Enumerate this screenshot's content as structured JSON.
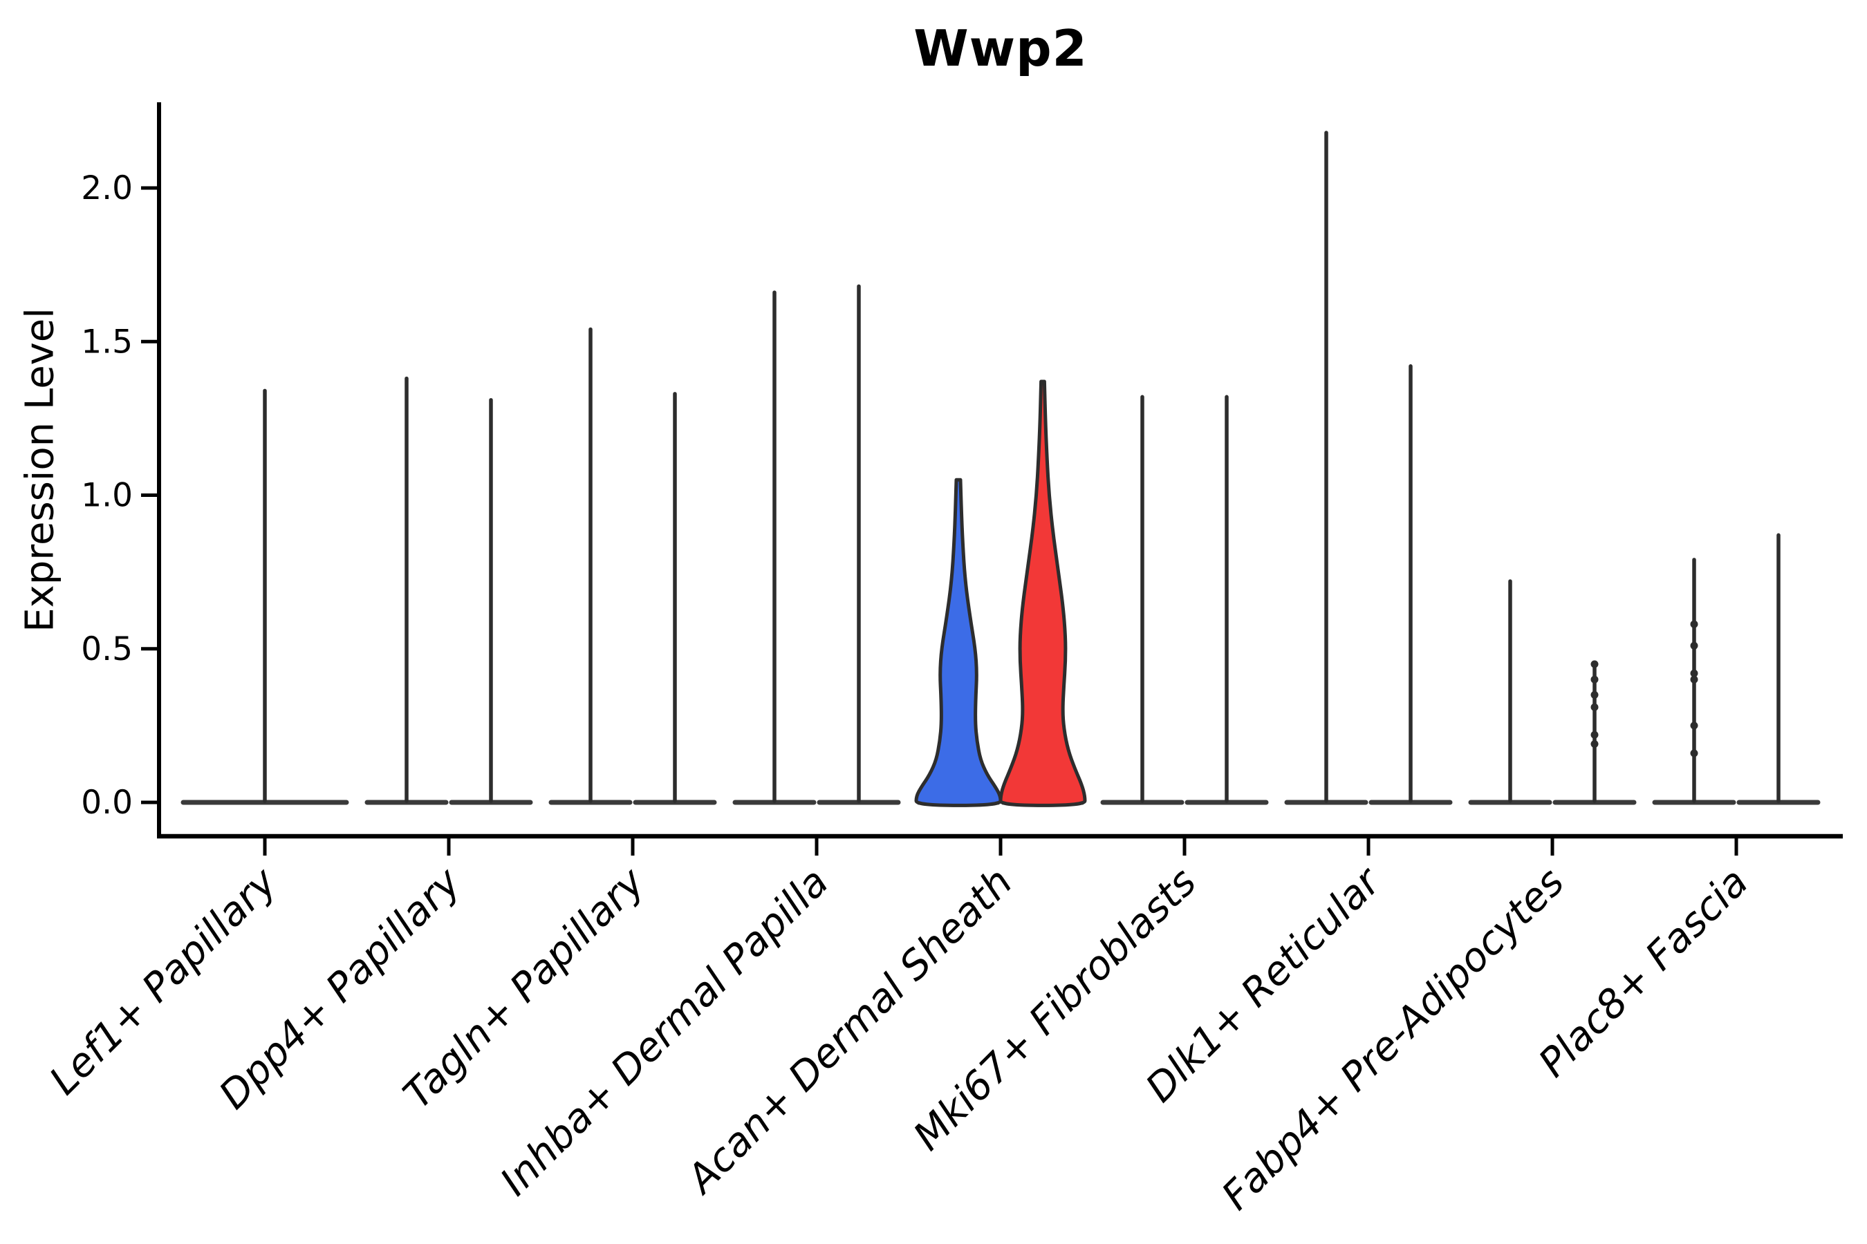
{
  "chart_data": {
    "type": "violin",
    "title": "Wwp2",
    "ylabel": "Expression Level",
    "xlabel": "",
    "yticks": [
      "0.0",
      "0.5",
      "1.0",
      "1.5",
      "2.0"
    ],
    "ylim": [
      -0.11,
      2.28
    ],
    "grid": false,
    "legend": "none",
    "colors": {
      "highlight_blue": "#3C6CE7",
      "highlight_red": "#F23837",
      "violin_outline": "#2D2D2D",
      "baseline": "#3A3A3A",
      "axis": "#000000"
    },
    "categories": [
      "Lef1+ Papillary",
      "Dpp4+ Papillary",
      "Tagln+ Papillary",
      "Inhba+ Dermal Papilla",
      "Acan+ Dermal Sheath",
      "Mki67+ Fibroblasts",
      "Dlk1+ Reticular",
      "Fabp4+ Pre-Adipocytes",
      "Plac8+ Fascia"
    ],
    "violins": [
      {
        "category": "Lef1+ Papillary",
        "items": [
          {
            "max": 1.34,
            "fill": "none",
            "span": "full"
          }
        ]
      },
      {
        "category": "Dpp4+ Papillary",
        "items": [
          {
            "max": 1.38,
            "fill": "none"
          },
          {
            "max": 1.31,
            "fill": "none"
          }
        ]
      },
      {
        "category": "Tagln+ Papillary",
        "items": [
          {
            "max": 1.54,
            "fill": "none"
          },
          {
            "max": 1.33,
            "fill": "none"
          }
        ]
      },
      {
        "category": "Inhba+ Dermal Papilla",
        "items": [
          {
            "max": 1.66,
            "fill": "none"
          },
          {
            "max": 1.68,
            "fill": "none"
          }
        ]
      },
      {
        "category": "Acan+ Dermal Sheath",
        "items": [
          {
            "max": 1.06,
            "fill": "#3C6CE7",
            "shape": "body",
            "profile": [
              [
                1.05,
                0.05
              ],
              [
                0.95,
                0.07
              ],
              [
                0.85,
                0.1
              ],
              [
                0.72,
                0.16
              ],
              [
                0.6,
                0.28
              ],
              [
                0.5,
                0.4
              ],
              [
                0.42,
                0.44
              ],
              [
                0.34,
                0.41
              ],
              [
                0.26,
                0.4
              ],
              [
                0.2,
                0.44
              ],
              [
                0.14,
                0.52
              ],
              [
                0.09,
                0.68
              ],
              [
                0.05,
                0.88
              ],
              [
                0.02,
                1.0
              ],
              [
                -0.01,
                1.0
              ]
            ]
          },
          {
            "max": 1.37,
            "fill": "#F23837",
            "shape": "body",
            "profile": [
              [
                1.37,
                0.04
              ],
              [
                1.25,
                0.06
              ],
              [
                1.12,
                0.1
              ],
              [
                1.0,
                0.15
              ],
              [
                0.88,
                0.24
              ],
              [
                0.76,
                0.36
              ],
              [
                0.64,
                0.48
              ],
              [
                0.54,
                0.54
              ],
              [
                0.46,
                0.54
              ],
              [
                0.38,
                0.5
              ],
              [
                0.3,
                0.47
              ],
              [
                0.24,
                0.5
              ],
              [
                0.17,
                0.6
              ],
              [
                0.11,
                0.76
              ],
              [
                0.06,
                0.92
              ],
              [
                0.02,
                1.0
              ],
              [
                -0.01,
                1.0
              ]
            ]
          }
        ]
      },
      {
        "category": "Mki67+ Fibroblasts",
        "items": [
          {
            "max": 1.32,
            "fill": "none"
          },
          {
            "max": 1.32,
            "fill": "none"
          }
        ]
      },
      {
        "category": "Dlk1+ Reticular",
        "items": [
          {
            "max": 2.18,
            "fill": "none"
          },
          {
            "max": 1.42,
            "fill": "none"
          }
        ]
      },
      {
        "category": "Fabp4+ Pre-Adipocytes",
        "items": [
          {
            "max": 0.72,
            "fill": "none"
          },
          {
            "max": 0.45,
            "fill": "none",
            "dots": [
              0.45,
              0.4,
              0.35,
              0.31,
              0.22,
              0.19
            ]
          }
        ]
      },
      {
        "category": "Plac8+ Fascia",
        "items": [
          {
            "max": 0.79,
            "fill": "none",
            "dots": [
              0.58,
              0.51,
              0.42,
              0.4,
              0.25,
              0.16
            ]
          },
          {
            "max": 0.87,
            "fill": "none"
          }
        ]
      }
    ]
  }
}
